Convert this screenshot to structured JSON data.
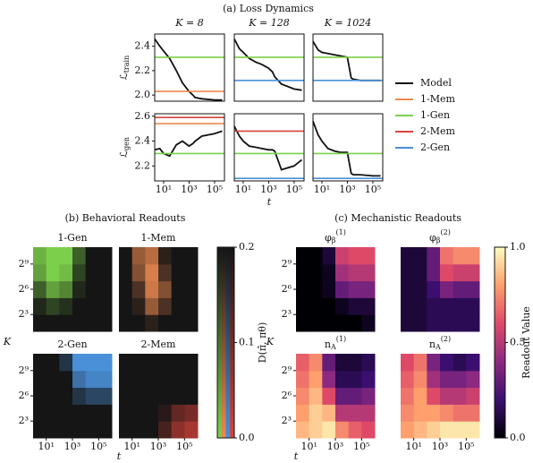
{
  "panel_titles": [
    "(a) Loss Dynamics",
    "(b) Behavioral Readouts",
    "(c) Mechanistic Readouts"
  ],
  "colorbars": [
    {
      "label": "D(π̂, πθ)",
      "lim": [
        0,
        0.2
      ],
      "ticks": [
        {
          "value": 0,
          "label": "0.0"
        },
        0.1,
        0.2
      ]
    },
    {
      "label": "Readout Value",
      "lim": [
        0,
        1
      ],
      "ticks": [
        {
          "value": 0,
          "label": "0.0"
        },
        0.5,
        {
          "value": 1,
          "label": "1.0"
        }
      ],
      "colormap": [
        "#000004",
        "#3b0f70",
        "#8c2981",
        "#de4968",
        "#fe9f6d",
        "#fcfdbf"
      ]
    }
  ],
  "chart_data": [
    {
      "type": "line",
      "title": "K = 8",
      "ylabel": {
        "symbol": "ℒ",
        "sub": "train"
      },
      "xscale": "log",
      "xlim": [
        2,
        600000
      ],
      "ylim": [
        1.95,
        2.5
      ],
      "yticks": [
        {
          "value": 2,
          "label": "2.0"
        },
        2.2,
        2.4
      ],
      "x": [
        2,
        5,
        10,
        30,
        100,
        300,
        1000,
        2000,
        3000,
        10000,
        100000,
        400000
      ],
      "series": [
        {
          "name": "Model",
          "color": "#111111",
          "values": [
            2.46,
            2.4,
            2.36,
            2.3,
            2.2,
            2.1,
            2.03,
            2.0,
            1.98,
            1.97,
            1.96,
            1.96
          ]
        },
        {
          "name": "1-Mem",
          "color": "#ee8a50",
          "value": 2.03
        },
        {
          "name": "1-Gen",
          "color": "#7ccf4a",
          "value": 2.31
        },
        {
          "name": "2-Mem",
          "color": "#d8433a",
          "value": null
        },
        {
          "name": "2-Gen",
          "color": "#4a90d9",
          "value": null
        }
      ]
    },
    {
      "type": "line",
      "title": "K = 128",
      "xscale": "log",
      "xlim": [
        2,
        600000
      ],
      "ylim": [
        1.95,
        2.5
      ],
      "x": [
        2,
        5,
        10,
        30,
        100,
        300,
        1000,
        2000,
        3000,
        10000,
        100000,
        400000
      ],
      "series": [
        {
          "name": "Model",
          "color": "#111111",
          "values": [
            2.46,
            2.38,
            2.35,
            2.3,
            2.27,
            2.25,
            2.22,
            2.19,
            2.15,
            2.09,
            2.05,
            2.04
          ]
        },
        {
          "name": "1-Gen",
          "color": "#7ccf4a",
          "value": 2.31
        },
        {
          "name": "2-Gen",
          "color": "#4a90d9",
          "value": 2.12
        }
      ]
    },
    {
      "type": "line",
      "title": "K = 1024",
      "xscale": "log",
      "xlim": [
        2,
        600000
      ],
      "ylim": [
        1.95,
        2.5
      ],
      "x": [
        2,
        5,
        10,
        30,
        100,
        300,
        1000,
        2000,
        3000,
        10000,
        100000,
        400000
      ],
      "series": [
        {
          "name": "Model",
          "color": "#111111",
          "values": [
            2.44,
            2.37,
            2.35,
            2.34,
            2.33,
            2.32,
            2.31,
            2.14,
            2.13,
            2.12,
            2.12,
            2.12
          ]
        },
        {
          "name": "1-Gen",
          "color": "#7ccf4a",
          "value": 2.31
        },
        {
          "name": "2-Gen",
          "color": "#4a90d9",
          "value": 2.12
        }
      ]
    },
    {
      "type": "line",
      "ylabel": {
        "symbol": "ℒ",
        "sub": "gen"
      },
      "xscale": "log",
      "xlim": [
        2,
        600000
      ],
      "ylim": [
        2.08,
        2.62
      ],
      "yticks": [
        2.2,
        2.4,
        2.6
      ],
      "xticks": [
        {
          "value": 10,
          "label": "10¹"
        },
        {
          "value": 1000,
          "label": "10³"
        },
        {
          "value": 100000,
          "label": "10⁵"
        }
      ],
      "x": [
        2,
        5,
        10,
        30,
        100,
        300,
        1000,
        2000,
        3000,
        10000,
        100000,
        400000
      ],
      "series": [
        {
          "name": "Model",
          "color": "#111111",
          "values": [
            2.33,
            2.34,
            2.3,
            2.28,
            2.37,
            2.4,
            2.36,
            2.38,
            2.4,
            2.44,
            2.46,
            2.48
          ]
        },
        {
          "name": "1-Mem",
          "color": "#ee8a50",
          "value": 2.54
        },
        {
          "name": "1-Gen",
          "color": "#7ccf4a",
          "value": 2.3
        },
        {
          "name": "2-Mem",
          "color": "#d8433a",
          "value": 2.59
        }
      ]
    },
    {
      "type": "line",
      "xlabel": "t",
      "xscale": "log",
      "xlim": [
        2,
        600000
      ],
      "ylim": [
        2.08,
        2.62
      ],
      "xticks": [
        {
          "value": 10,
          "label": "10¹"
        },
        {
          "value": 1000,
          "label": "10³"
        },
        {
          "value": 100000,
          "label": "10⁵"
        }
      ],
      "x": [
        2,
        5,
        10,
        30,
        100,
        300,
        1000,
        2000,
        3000,
        10000,
        100000,
        400000
      ],
      "series": [
        {
          "name": "Model",
          "color": "#111111",
          "values": [
            2.52,
            2.44,
            2.4,
            2.36,
            2.35,
            2.34,
            2.33,
            2.33,
            2.32,
            2.17,
            2.2,
            2.25
          ]
        },
        {
          "name": "1-Gen",
          "color": "#7ccf4a",
          "value": 2.3
        },
        {
          "name": "2-Mem",
          "color": "#d8433a",
          "value": 2.48
        },
        {
          "name": "2-Gen",
          "color": "#4a90d9",
          "value": 2.1
        }
      ]
    },
    {
      "type": "line",
      "xscale": "log",
      "xlim": [
        2,
        600000
      ],
      "ylim": [
        2.08,
        2.62
      ],
      "xticks": [
        {
          "value": 10,
          "label": "10¹"
        },
        {
          "value": 1000,
          "label": "10³"
        },
        {
          "value": 100000,
          "label": "10⁵"
        }
      ],
      "x": [
        2,
        5,
        10,
        30,
        100,
        300,
        1000,
        2000,
        3000,
        10000,
        100000,
        400000
      ],
      "series": [
        {
          "name": "Model",
          "color": "#111111",
          "values": [
            2.56,
            2.45,
            2.4,
            2.34,
            2.32,
            2.31,
            2.31,
            2.14,
            2.13,
            2.13,
            2.12,
            2.12
          ]
        },
        {
          "name": "1-Gen",
          "color": "#7ccf4a",
          "value": 2.3
        },
        {
          "name": "2-Gen",
          "color": "#4a90d9",
          "value": 2.1
        }
      ]
    },
    {
      "type": "heatmap",
      "title": "1-Gen",
      "ylabel": "K",
      "colors": [
        "#7ccf4a",
        "#151515"
      ],
      "zlim": [
        0,
        0.2
      ],
      "xbins": [
        1,
        10,
        100,
        1000,
        10000,
        100000,
        1000000
      ],
      "ybins": [
        2,
        8,
        32,
        128,
        512,
        2048
      ],
      "yticks": [
        {
          "value": 8,
          "label": "2³"
        },
        {
          "value": 64,
          "label": "2⁶"
        },
        {
          "value": 512,
          "label": "2⁹"
        }
      ],
      "z": [
        [
          0.2,
          0.2,
          0.2,
          0.2,
          0.2,
          0.2
        ],
        [
          0.18,
          0.15,
          0.17,
          0.2,
          0.2,
          0.2
        ],
        [
          0.12,
          0.05,
          0.08,
          0.18,
          0.2,
          0.2
        ],
        [
          0.05,
          0.0,
          0.02,
          0.15,
          0.2,
          0.2
        ],
        [
          0.03,
          0.0,
          0.0,
          0.12,
          0.2,
          0.2
        ]
      ]
    },
    {
      "type": "heatmap",
      "title": "1-Mem",
      "colors": [
        "#ee8a50",
        "#151515"
      ],
      "zlim": [
        0,
        0.2
      ],
      "xbins": [
        1,
        10,
        100,
        1000,
        10000,
        100000,
        1000000
      ],
      "ybins": [
        2,
        8,
        32,
        128,
        512,
        2048
      ],
      "z": [
        [
          0.2,
          0.2,
          0.18,
          0.2,
          0.2,
          0.2
        ],
        [
          0.2,
          0.18,
          0.08,
          0.15,
          0.2,
          0.2
        ],
        [
          0.2,
          0.15,
          0.03,
          0.1,
          0.2,
          0.2
        ],
        [
          0.2,
          0.1,
          0.02,
          0.15,
          0.2,
          0.2
        ],
        [
          0.2,
          0.08,
          0.05,
          0.18,
          0.2,
          0.2
        ]
      ]
    },
    {
      "type": "heatmap",
      "title": "2-Gen",
      "colors": [
        "#4a90d9",
        "#151515"
      ],
      "zlim": [
        0,
        0.2
      ],
      "xbins": [
        1,
        10,
        100,
        1000,
        10000,
        100000,
        1000000
      ],
      "ybins": [
        2,
        8,
        32,
        128,
        512,
        2048
      ],
      "yticks": [
        {
          "value": 8,
          "label": "2³"
        },
        {
          "value": 64,
          "label": "2⁶"
        },
        {
          "value": 512,
          "label": "2⁹"
        }
      ],
      "xticks": [
        {
          "value": 10,
          "label": "10¹"
        },
        {
          "value": 1000,
          "label": "10³"
        },
        {
          "value": 100000,
          "label": "10⁵"
        }
      ],
      "z": [
        [
          0.2,
          0.2,
          0.2,
          0.2,
          0.2,
          0.2
        ],
        [
          0.2,
          0.2,
          0.2,
          0.2,
          0.2,
          0.2
        ],
        [
          0.2,
          0.2,
          0.2,
          0.15,
          0.12,
          0.12
        ],
        [
          0.2,
          0.2,
          0.2,
          0.05,
          0.02,
          0.02
        ],
        [
          0.2,
          0.2,
          0.15,
          0.0,
          0.0,
          0.0
        ]
      ]
    },
    {
      "type": "heatmap",
      "title": "2-Mem",
      "xlabel": "t",
      "colors": [
        "#d8433a",
        "#151515"
      ],
      "zlim": [
        0,
        0.2
      ],
      "xbins": [
        1,
        10,
        100,
        1000,
        10000,
        100000,
        1000000
      ],
      "ybins": [
        2,
        8,
        32,
        128,
        512,
        2048
      ],
      "xticks": [
        {
          "value": 10,
          "label": "10¹"
        },
        {
          "value": 1000,
          "label": "10³"
        },
        {
          "value": 100000,
          "label": "10⁵"
        }
      ],
      "z": [
        [
          0.2,
          0.2,
          0.2,
          0.15,
          0.08,
          0.05
        ],
        [
          0.2,
          0.2,
          0.2,
          0.18,
          0.12,
          0.1
        ],
        [
          0.2,
          0.2,
          0.2,
          0.2,
          0.2,
          0.2
        ],
        [
          0.2,
          0.2,
          0.2,
          0.2,
          0.2,
          0.2
        ],
        [
          0.2,
          0.2,
          0.2,
          0.2,
          0.2,
          0.2
        ]
      ]
    },
    {
      "type": "heatmap",
      "title": {
        "symbol": "φ",
        "sub": "β",
        "sup": "(1)"
      },
      "ylabel": "K",
      "colormap": [
        "#000004",
        "#3b0f70",
        "#8c2981",
        "#de4968",
        "#fe9f6d",
        "#fcfdbf"
      ],
      "zlim": [
        0,
        1
      ],
      "xbins": [
        1,
        10,
        100,
        1000,
        10000,
        100000,
        1000000
      ],
      "ybins": [
        2,
        8,
        32,
        128,
        512,
        2048
      ],
      "yticks": [
        {
          "value": 8,
          "label": "2³"
        },
        {
          "value": 64,
          "label": "2⁶"
        },
        {
          "value": 512,
          "label": "2⁹"
        }
      ],
      "z": [
        [
          0,
          0,
          0,
          0,
          0,
          0.05
        ],
        [
          0,
          0,
          0,
          0.05,
          0.1,
          0.1
        ],
        [
          0,
          0,
          0.05,
          0.3,
          0.35,
          0.35
        ],
        [
          0,
          0,
          0.05,
          0.45,
          0.5,
          0.5
        ],
        [
          0,
          0,
          0.1,
          0.55,
          0.6,
          0.6
        ]
      ]
    },
    {
      "type": "heatmap",
      "title": {
        "symbol": "φ",
        "sub": "β",
        "sup": "(2)"
      },
      "colormap": [
        "#000004",
        "#3b0f70",
        "#8c2981",
        "#de4968",
        "#fe9f6d",
        "#fcfdbf"
      ],
      "zlim": [
        0,
        1
      ],
      "xbins": [
        1,
        10,
        100,
        1000,
        10000,
        100000,
        1000000
      ],
      "ybins": [
        2,
        8,
        32,
        128,
        512,
        2048
      ],
      "z": [
        [
          0.1,
          0.1,
          0.15,
          0.15,
          0.15,
          0.15
        ],
        [
          0.1,
          0.1,
          0.15,
          0.15,
          0.15,
          0.15
        ],
        [
          0.1,
          0.1,
          0.2,
          0.35,
          0.3,
          0.3
        ],
        [
          0.1,
          0.1,
          0.3,
          0.6,
          0.55,
          0.55
        ],
        [
          0.1,
          0.1,
          0.3,
          0.7,
          0.75,
          0.75
        ]
      ]
    },
    {
      "type": "heatmap",
      "title": {
        "symbol": "n",
        "sub": "A",
        "sup": "(1)"
      },
      "xlabel": "t",
      "colormap": [
        "#000004",
        "#3b0f70",
        "#8c2981",
        "#de4968",
        "#fe9f6d",
        "#fcfdbf"
      ],
      "zlim": [
        0,
        1
      ],
      "xbins": [
        1,
        10,
        100,
        1000,
        10000,
        100000,
        1000000
      ],
      "ybins": [
        2,
        8,
        32,
        128,
        512,
        2048
      ],
      "yticks": [
        {
          "value": 8,
          "label": "2³"
        },
        {
          "value": 64,
          "label": "2⁶"
        },
        {
          "value": 512,
          "label": "2⁹"
        }
      ],
      "xticks": [
        {
          "value": 10,
          "label": "10¹"
        },
        {
          "value": 1000,
          "label": "10³"
        },
        {
          "value": 100000,
          "label": "10⁵"
        }
      ],
      "z": [
        [
          0.85,
          0.9,
          0.95,
          0.75,
          0.65,
          0.6
        ],
        [
          0.8,
          0.9,
          0.85,
          0.5,
          0.5,
          0.5
        ],
        [
          0.75,
          0.85,
          0.6,
          0.3,
          0.3,
          0.35
        ],
        [
          0.7,
          0.8,
          0.4,
          0.15,
          0.15,
          0.2
        ],
        [
          0.65,
          0.75,
          0.3,
          0.1,
          0.1,
          0.15
        ]
      ]
    },
    {
      "type": "heatmap",
      "title": {
        "symbol": "n",
        "sub": "A",
        "sup": "(2)"
      },
      "colormap": [
        "#000004",
        "#3b0f70",
        "#8c2981",
        "#de4968",
        "#fe9f6d",
        "#fcfdbf"
      ],
      "zlim": [
        0,
        1
      ],
      "xbins": [
        1,
        10,
        100,
        1000,
        10000,
        100000,
        1000000
      ],
      "ybins": [
        2,
        8,
        32,
        128,
        512,
        2048
      ],
      "xticks": [
        {
          "value": 10,
          "label": "10¹"
        },
        {
          "value": 1000,
          "label": "10³"
        },
        {
          "value": 100000,
          "label": "10⁵"
        }
      ],
      "z": [
        [
          0.8,
          0.85,
          0.9,
          0.95,
          0.95,
          0.95
        ],
        [
          0.75,
          0.8,
          0.8,
          0.75,
          0.7,
          0.7
        ],
        [
          0.7,
          0.8,
          0.6,
          0.5,
          0.5,
          0.55
        ],
        [
          0.65,
          0.75,
          0.45,
          0.35,
          0.35,
          0.4
        ],
        [
          0.6,
          0.7,
          0.35,
          0.2,
          0.15,
          0.2
        ]
      ]
    }
  ]
}
